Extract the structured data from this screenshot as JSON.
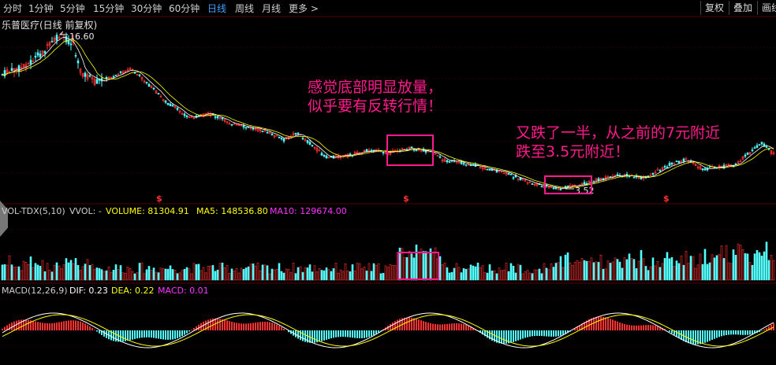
{
  "toolbar": {
    "periods": [
      "分时",
      "1分钟",
      "5分钟",
      "15分钟",
      "30分钟",
      "60分钟",
      "日线",
      "周线",
      "月线",
      "更多 >"
    ],
    "active_period": "日线",
    "right_buttons": [
      "复权",
      "叠加",
      "画线"
    ]
  },
  "stock": {
    "title": "乐普医疗(日线 前复权)",
    "high_label": "16.60",
    "low_label": "3.52"
  },
  "volume_legend": {
    "indicator": "VOL-TDX(5,10)",
    "vvol": "VVOL: -",
    "volume": "VOLUME: 81304.91",
    "ma5": "MA5: 148536.80",
    "ma10": "MA10: 129674.00"
  },
  "macd_legend": {
    "indicator": "MACD(12,26,9)",
    "dif": "DIF: 0.23",
    "dea": "DEA: 0.22",
    "macd": "MACD: 0.01"
  },
  "annotations": {
    "bottom_note_line1": "感觉底部明显放量，",
    "bottom_note_line2": "似乎要有反转行情！",
    "halve_note_line1": "又跌了一半，从之前的7元附近",
    "halve_note_line2": "跌至3.5元附近！"
  },
  "markers": {
    "dividend_symbol": "$"
  },
  "colors": {
    "up": "#ff3232",
    "down": "#54ffff",
    "ma5": "#ffffff",
    "ma10": "#ffff00",
    "volume_label": "#ffff00",
    "ma10_label": "#ff33ff",
    "annotation": "#ff1a8c",
    "active_period": "#3fa0ff"
  }
}
